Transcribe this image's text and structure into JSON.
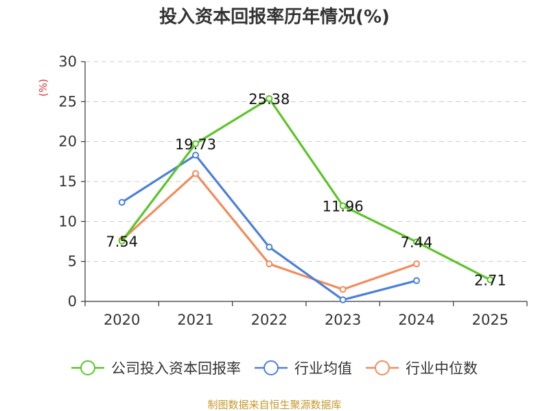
{
  "chart_data": {
    "type": "line",
    "title": "投入资本回报率历年情况(%)",
    "ylabel": "(%)",
    "xlabel": "",
    "ylim": [
      0,
      30
    ],
    "yticks": [
      0,
      5,
      10,
      15,
      20,
      25,
      30
    ],
    "grid": true,
    "legend_position": "bottom",
    "categories": [
      "2020",
      "2021",
      "2022",
      "2023",
      "2024",
      "2025"
    ],
    "series": [
      {
        "name": "公司投入资本回报率",
        "color": "#5ac526",
        "values": [
          7.54,
          19.73,
          25.38,
          11.96,
          7.44,
          2.71
        ],
        "labels": [
          "7.54",
          "19.73",
          "25.38",
          "11.96",
          "7.44",
          "2.71"
        ]
      },
      {
        "name": "行业均值",
        "color": "#4a7fdc",
        "values": [
          12.4,
          18.3,
          6.8,
          0.2,
          2.6,
          null
        ]
      },
      {
        "name": "行业中位数",
        "color": "#f28b5a",
        "values": [
          7.7,
          16.0,
          4.7,
          1.5,
          4.7,
          null
        ]
      }
    ],
    "source": "制图数据来自恒生聚源数据库"
  }
}
